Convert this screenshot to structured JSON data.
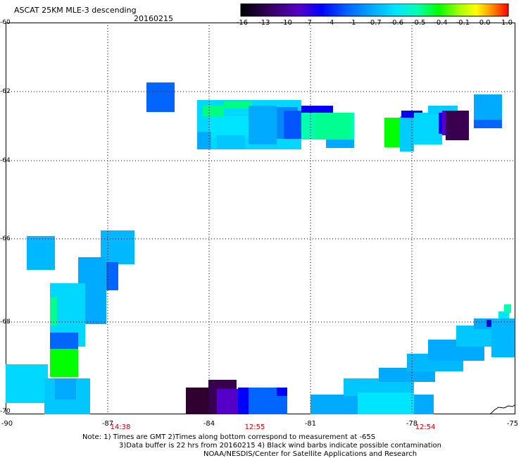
{
  "header": {
    "title": "ASCAT 25KM MLE-3 descending",
    "date": "20160215"
  },
  "colorbar": {
    "labels": [
      "-16",
      "-13",
      "-10",
      "-7",
      "-4",
      "-1",
      "-0.7",
      "-0.6",
      "-0.5",
      "-0.4",
      "-0.1",
      "0.0",
      "1.0"
    ],
    "colors": [
      "#000000",
      "#3a006a",
      "#5500c8",
      "#0000ff",
      "#0066ff",
      "#00b0ff",
      "#00e5ff",
      "#00ffb0",
      "#00ff00",
      "#aaff00",
      "#ffff00",
      "#ff8c00",
      "#ff0000"
    ]
  },
  "map": {
    "lat_labels": [
      "-60",
      "-62",
      "-64",
      "-66",
      "-68",
      "-70"
    ],
    "lon_labels": [
      "-90",
      "-87",
      "-84",
      "-81",
      "-78",
      "-75"
    ],
    "pass_times": [
      "14:38",
      "12:55",
      "12:54"
    ]
  },
  "notes": {
    "line1": "Note: 1) Times are GMT 2)Times along bottom correspond to measurement at -65S",
    "line2": "3)Data buffer is 22 hrs from 20160215 4) Black wind barbs indicate possible contamination",
    "line3": "NOAA/NESDIS/Center for Satellite Applications and Research"
  }
}
